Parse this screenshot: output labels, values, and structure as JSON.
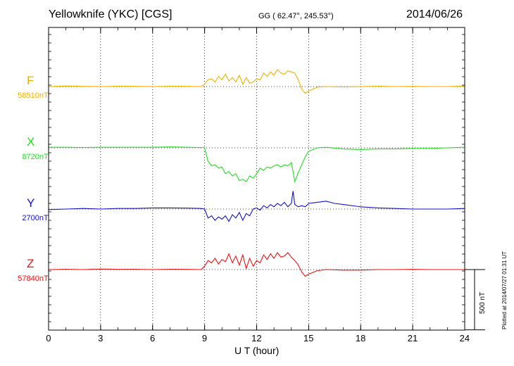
{
  "header": {
    "station": "Yellowknife (YKC)  [CGS]",
    "coords": "GG ( 62.47°, 245.53°)",
    "date": "2014/06/26"
  },
  "footer": {
    "plotted": "Plotted at 2014/07/27 01:31  UT"
  },
  "chart_data": {
    "type": "line",
    "xlabel": "U T (hour)",
    "xlim": [
      0,
      24
    ],
    "xticks": [
      0,
      3,
      6,
      9,
      12,
      15,
      18,
      21,
      24
    ],
    "xtick_labels": [
      "0",
      "3",
      "6",
      "9",
      "12",
      "15",
      "18",
      "21",
      "24"
    ],
    "grid": true,
    "scale_bar": {
      "value": 500,
      "label": "500 nT"
    },
    "series": [
      {
        "name": "F",
        "baseline_label": "58510nT",
        "baseline_nT": 58510,
        "color": "#f0b000",
        "x": [
          0,
          1,
          2,
          3,
          4,
          5,
          6,
          7,
          8,
          8.8,
          9.0,
          9.2,
          9.4,
          9.6,
          9.8,
          10.0,
          10.2,
          10.4,
          10.6,
          10.8,
          11.0,
          11.2,
          11.4,
          11.6,
          11.8,
          12.0,
          12.2,
          12.4,
          12.6,
          12.8,
          13.0,
          13.2,
          13.4,
          13.6,
          13.8,
          14.0,
          14.2,
          14.4,
          14.6,
          14.8,
          15.0,
          15.5,
          16,
          17,
          18,
          19,
          20,
          21,
          22,
          23,
          24
        ],
        "y": [
          0,
          5,
          2,
          0,
          3,
          2,
          0,
          3,
          2,
          0,
          20,
          60,
          70,
          40,
          90,
          60,
          110,
          50,
          80,
          40,
          100,
          20,
          80,
          30,
          40,
          70,
          60,
          120,
          90,
          130,
          100,
          150,
          120,
          110,
          140,
          130,
          120,
          60,
          -20,
          -60,
          -40,
          -5,
          0,
          -3,
          0,
          3,
          0,
          2,
          0,
          0,
          5
        ]
      },
      {
        "name": "X",
        "baseline_label": "8720nT",
        "baseline_nT": 8720,
        "color": "#22dd22",
        "x": [
          0,
          1,
          2,
          3,
          4,
          5,
          6,
          7,
          8,
          8.8,
          9.0,
          9.2,
          9.4,
          9.6,
          9.8,
          10.0,
          10.2,
          10.4,
          10.6,
          10.8,
          11.0,
          11.2,
          11.4,
          11.6,
          11.8,
          12.0,
          12.2,
          12.4,
          12.6,
          12.8,
          13.0,
          13.2,
          13.4,
          13.6,
          13.8,
          14.0,
          14.2,
          14.4,
          14.6,
          14.8,
          15.0,
          15.5,
          16,
          17,
          18,
          19,
          20,
          21,
          22,
          23,
          24
        ],
        "y": [
          5,
          5,
          3,
          5,
          5,
          5,
          5,
          8,
          5,
          3,
          0,
          -120,
          -160,
          -150,
          -180,
          -170,
          -230,
          -210,
          -250,
          -230,
          -290,
          -280,
          -300,
          -250,
          -270,
          -230,
          -180,
          -200,
          -170,
          -180,
          -160,
          -150,
          -170,
          -150,
          -160,
          -130,
          -300,
          -220,
          -150,
          -80,
          -30,
          0,
          5,
          -10,
          -15,
          -10,
          -10,
          -5,
          -5,
          0,
          5
        ]
      },
      {
        "name": "Y",
        "baseline_label": "2700nT",
        "baseline_nT": 2700,
        "color": "#1111cc",
        "x": [
          0,
          1,
          2,
          3,
          4,
          5,
          6,
          7,
          8,
          8.8,
          9.0,
          9.2,
          9.4,
          9.6,
          9.8,
          10.0,
          10.2,
          10.4,
          10.6,
          10.8,
          11.0,
          11.2,
          11.4,
          11.6,
          11.8,
          12.0,
          12.2,
          12.4,
          12.6,
          12.8,
          13.0,
          13.2,
          13.4,
          13.6,
          13.8,
          14.0,
          14.1,
          14.2,
          14.4,
          14.6,
          14.8,
          15.0,
          15.5,
          16,
          16.5,
          17,
          18,
          19,
          20,
          21,
          22,
          23,
          24
        ],
        "y": [
          -5,
          0,
          5,
          0,
          5,
          5,
          10,
          10,
          8,
          5,
          0,
          -80,
          -60,
          -100,
          -70,
          -90,
          -60,
          -110,
          -50,
          -80,
          -30,
          -100,
          -40,
          -60,
          0,
          10,
          -10,
          30,
          10,
          40,
          20,
          50,
          30,
          60,
          20,
          50,
          160,
          40,
          20,
          30,
          20,
          50,
          60,
          70,
          50,
          40,
          20,
          10,
          5,
          0,
          0,
          0,
          5
        ]
      },
      {
        "name": "Z",
        "baseline_label": "57840nT",
        "baseline_nT": 57840,
        "color": "#ee1111",
        "x": [
          0,
          1,
          2,
          3,
          4,
          5,
          6,
          7,
          8,
          8.8,
          9.0,
          9.2,
          9.4,
          9.6,
          9.8,
          10.0,
          10.2,
          10.4,
          10.6,
          10.8,
          11.0,
          11.2,
          11.4,
          11.6,
          11.8,
          12.0,
          12.2,
          12.4,
          12.6,
          12.8,
          13.0,
          13.2,
          13.4,
          13.6,
          13.8,
          14.0,
          14.2,
          14.4,
          14.6,
          14.8,
          15.0,
          15.5,
          16,
          17,
          18,
          19,
          20,
          21,
          22,
          23,
          24
        ],
        "y": [
          0,
          3,
          0,
          5,
          2,
          3,
          0,
          3,
          2,
          0,
          30,
          80,
          60,
          100,
          50,
          90,
          70,
          140,
          60,
          120,
          40,
          130,
          10,
          100,
          30,
          80,
          60,
          130,
          90,
          140,
          100,
          150,
          110,
          120,
          150,
          110,
          80,
          40,
          -20,
          -60,
          -40,
          -10,
          0,
          -5,
          -5,
          0,
          0,
          2,
          0,
          0,
          0
        ]
      }
    ]
  }
}
